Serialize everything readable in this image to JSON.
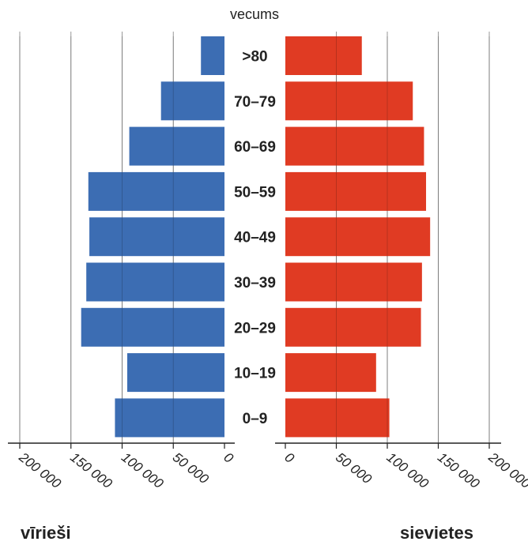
{
  "chart_data": {
    "type": "bar",
    "subtype": "population-pyramid",
    "category_axis_title": "vecums",
    "categories": [
      ">80",
      "70–79",
      "60–69",
      "50–59",
      "40–49",
      "30–39",
      "20–29",
      "10–19",
      "0–9"
    ],
    "series": [
      {
        "name": "vīrieši",
        "color": "#3c6db3",
        "values": [
          23000,
          62000,
          93000,
          133000,
          132000,
          135000,
          140000,
          95000,
          107000
        ]
      },
      {
        "name": "sievietes",
        "color": "#e03b23",
        "values": [
          75000,
          125000,
          136000,
          138000,
          142000,
          134000,
          133000,
          89000,
          102000
        ]
      }
    ],
    "xlim": [
      0,
      200000
    ],
    "ticks": [
      0,
      50000,
      100000,
      150000,
      200000
    ],
    "tick_labels": [
      "0",
      "50 000",
      "100 000",
      "150 000",
      "200 000"
    ],
    "grid": true
  },
  "labels": {
    "left": "vīrieši",
    "right": "sievietes"
  }
}
